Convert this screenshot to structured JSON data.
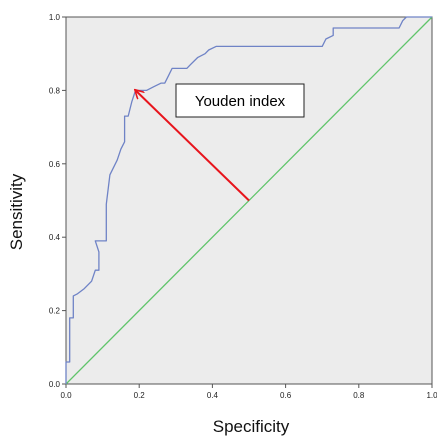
{
  "chart_data": {
    "type": "line",
    "title": "",
    "xlabel": "Specificity",
    "ylabel": "Sensitivity",
    "xlim": [
      0,
      1
    ],
    "ylim": [
      0,
      1
    ],
    "x_ticks": [
      "0.0",
      "0.2",
      "0.4",
      "0.6",
      "0.8",
      "1.0"
    ],
    "y_ticks": [
      "0.0",
      "0.2",
      "0.4",
      "0.6",
      "0.8",
      "1.0"
    ],
    "grid": false,
    "background": "#ececec",
    "series": [
      {
        "color": "#6f83c6",
        "points": [
          [
            0.0,
            0.0
          ],
          [
            0.0,
            0.06
          ],
          [
            0.01,
            0.06
          ],
          [
            0.01,
            0.18
          ],
          [
            0.02,
            0.18
          ],
          [
            0.02,
            0.24
          ],
          [
            0.03,
            0.245
          ],
          [
            0.05,
            0.26
          ],
          [
            0.07,
            0.28
          ],
          [
            0.08,
            0.31
          ],
          [
            0.09,
            0.31
          ],
          [
            0.09,
            0.36
          ],
          [
            0.08,
            0.39
          ],
          [
            0.11,
            0.39
          ],
          [
            0.11,
            0.49
          ],
          [
            0.12,
            0.57
          ],
          [
            0.14,
            0.61
          ],
          [
            0.15,
            0.64
          ],
          [
            0.16,
            0.66
          ],
          [
            0.16,
            0.73
          ],
          [
            0.17,
            0.73
          ],
          [
            0.18,
            0.77
          ],
          [
            0.19,
            0.8
          ],
          [
            0.22,
            0.8
          ],
          [
            0.24,
            0.81
          ],
          [
            0.26,
            0.82
          ],
          [
            0.27,
            0.82
          ],
          [
            0.28,
            0.84
          ],
          [
            0.29,
            0.86
          ],
          [
            0.33,
            0.86
          ],
          [
            0.34,
            0.87
          ],
          [
            0.36,
            0.89
          ],
          [
            0.38,
            0.9
          ],
          [
            0.39,
            0.91
          ],
          [
            0.41,
            0.92
          ],
          [
            0.7,
            0.92
          ],
          [
            0.71,
            0.94
          ],
          [
            0.73,
            0.95
          ],
          [
            0.73,
            0.97
          ],
          [
            0.91,
            0.97
          ],
          [
            0.92,
            0.99
          ],
          [
            0.93,
            1.0
          ],
          [
            1.0,
            1.0
          ]
        ]
      },
      {
        "color": "#5fc46a",
        "points": [
          [
            0.0,
            0.0
          ],
          [
            1.0,
            1.0
          ]
        ]
      }
    ],
    "annotations": [
      {
        "text": "Youden index",
        "arrow_from": [
          0.5,
          0.5
        ],
        "arrow_to": [
          0.19,
          0.8
        ],
        "arrow_color": "#e8141c"
      }
    ]
  }
}
